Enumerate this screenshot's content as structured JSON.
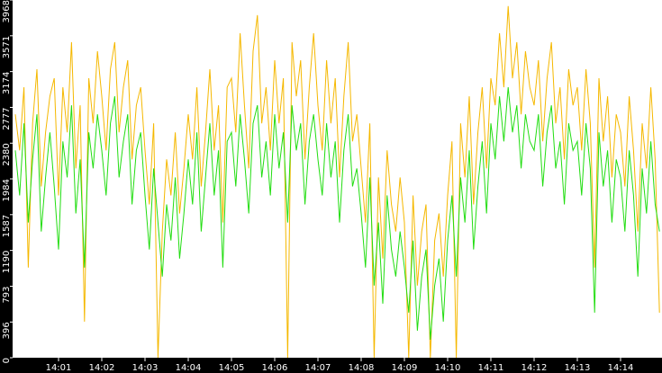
{
  "chart_data": {
    "type": "line",
    "categories": [
      null,
      null,
      null,
      null,
      null,
      null,
      null,
      null,
      null,
      null,
      "14:01",
      null,
      null,
      null,
      null,
      null,
      null,
      null,
      null,
      null,
      "14:02",
      null,
      null,
      null,
      null,
      null,
      null,
      null,
      null,
      null,
      "14:03",
      null,
      null,
      null,
      null,
      null,
      null,
      null,
      null,
      null,
      "14:04",
      null,
      null,
      null,
      null,
      null,
      null,
      null,
      null,
      null,
      "14:05",
      null,
      null,
      null,
      null,
      null,
      null,
      null,
      null,
      null,
      "14:06",
      null,
      null,
      null,
      null,
      null,
      null,
      null,
      null,
      null,
      "14:07",
      null,
      null,
      null,
      null,
      null,
      null,
      null,
      null,
      null,
      "14:08",
      null,
      null,
      null,
      null,
      null,
      null,
      null,
      null,
      null,
      "14:09",
      null,
      null,
      null,
      null,
      null,
      null,
      null,
      null,
      null,
      "14:10",
      null,
      null,
      null,
      null,
      null,
      null,
      null,
      null,
      null,
      "14:11",
      null,
      null,
      null,
      null,
      null,
      null,
      null,
      null,
      null,
      "14:12",
      null,
      null,
      null,
      null,
      null,
      null,
      null,
      null,
      null,
      "14:13",
      null,
      null,
      null,
      null,
      null,
      null,
      null,
      null,
      null,
      "14:14",
      null,
      null,
      null,
      null,
      null,
      null,
      null,
      null,
      null
    ],
    "series": [
      {
        "color": "#f5b800",
        "values": [
          2700,
          2300,
          3000,
          1000,
          2600,
          3200,
          1900,
          2500,
          2900,
          3100,
          1800,
          3000,
          2500,
          3500,
          2100,
          2800,
          400,
          3100,
          2600,
          3400,
          2900,
          2300,
          3200,
          3500,
          2500,
          3000,
          3300,
          2200,
          2800,
          3000,
          2300,
          1700,
          2600,
          0,
          1400,
          2200,
          1800,
          2500,
          1600,
          2100,
          2700,
          2200,
          3000,
          1900,
          2500,
          3200,
          2300,
          2800,
          1500,
          3000,
          3100,
          2500,
          3600,
          2800,
          2100,
          3400,
          3800,
          2600,
          3000,
          2300,
          3300,
          2600,
          3100,
          0,
          3500,
          2900,
          3300,
          2200,
          3000,
          3600,
          2800,
          2300,
          3300,
          2600,
          3100,
          2000,
          2900,
          3500,
          2400,
          2700,
          2100,
          1500,
          2600,
          0,
          2000,
          1100,
          2300,
          1700,
          1400,
          2000,
          1500,
          0,
          1800,
          800,
          1400,
          1700,
          0,
          1300,
          1600,
          900,
          1800,
          2400,
          0,
          2600,
          2000,
          2900,
          1700,
          2500,
          3000,
          2100,
          3100,
          2800,
          3600,
          3000,
          3900,
          3100,
          3500,
          2700,
          3400,
          3000,
          2800,
          3300,
          2400,
          3100,
          3500,
          2600,
          3000,
          2200,
          3200,
          2800,
          3000,
          2300,
          3200,
          2600,
          1000,
          3100,
          2400,
          2900,
          2000,
          2700,
          2500,
          1900,
          2900,
          2300,
          1400,
          2600,
          2100,
          3000,
          2200,
          500
        ]
      },
      {
        "color": "#22dd11",
        "values": [
          2300,
          1800,
          2600,
          1500,
          2200,
          2700,
          1400,
          2000,
          2500,
          1900,
          1200,
          2400,
          2000,
          2800,
          1600,
          2200,
          1000,
          2500,
          2100,
          2700,
          2300,
          1800,
          2600,
          2900,
          2000,
          2400,
          2700,
          1700,
          2300,
          2500,
          1800,
          1200,
          2100,
          1500,
          900,
          1700,
          1300,
          2000,
          1100,
          1600,
          2200,
          1700,
          2500,
          1400,
          2000,
          2600,
          1800,
          2300,
          1000,
          2400,
          2500,
          1900,
          2700,
          2200,
          1600,
          2600,
          2800,
          2000,
          2400,
          1800,
          2700,
          2100,
          2500,
          1500,
          2800,
          2300,
          2600,
          1700,
          2400,
          2700,
          2200,
          1800,
          2600,
          2000,
          2400,
          1500,
          2300,
          2700,
          1900,
          2100,
          1600,
          1000,
          2000,
          800,
          1500,
          600,
          1800,
          1200,
          900,
          1400,
          1000,
          500,
          1300,
          300,
          900,
          1200,
          200,
          800,
          1100,
          400,
          1300,
          1800,
          900,
          2000,
          1500,
          2300,
          1200,
          1900,
          2400,
          1600,
          2600,
          2200,
          2900,
          2400,
          3000,
          2500,
          2800,
          2100,
          2700,
          2400,
          2300,
          2700,
          1900,
          2500,
          2800,
          2100,
          2400,
          1700,
          2600,
          2300,
          2400,
          1800,
          2600,
          2100,
          500,
          2500,
          1900,
          2300,
          1500,
          2200,
          2000,
          1400,
          2300,
          1800,
          900,
          2100,
          1600,
          2400,
          1700,
          1400
        ]
      }
    ],
    "ylim": [
      0,
      3968
    ],
    "yticks": [
      0,
      396,
      793,
      1190,
      1587,
      1984,
      2380,
      2777,
      3174,
      3571,
      3968
    ]
  }
}
